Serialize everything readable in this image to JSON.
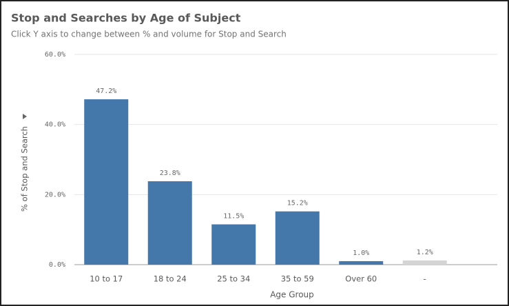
{
  "chart_data": {
    "type": "bar",
    "title": "Stop and Searches by Age of Subject",
    "subtitle": "Click Y axis to change between % and volume for Stop and Search",
    "x_label": "Age Group",
    "y_label": "% of Stop and Search",
    "categories": [
      "10 to 17",
      "18 to 24",
      "25 to 34",
      "35 to 59",
      "Over 60",
      "-"
    ],
    "values": [
      47.2,
      23.8,
      11.5,
      15.2,
      1.0,
      1.2
    ],
    "value_labels": [
      "47.2%",
      "23.8%",
      "11.5%",
      "15.2%",
      "1.0%",
      "1.2%"
    ],
    "colors": [
      "#4477aa",
      "#4477aa",
      "#4477aa",
      "#4477aa",
      "#4477aa",
      "#d4d4d4"
    ],
    "ylim": [
      0,
      60
    ],
    "yticks": [
      {
        "value": 0,
        "label": "0.0%"
      },
      {
        "value": 20,
        "label": "20.0%"
      },
      {
        "value": 40,
        "label": "40.0%"
      },
      {
        "value": 60,
        "label": "60.0%"
      }
    ],
    "grid": true
  }
}
